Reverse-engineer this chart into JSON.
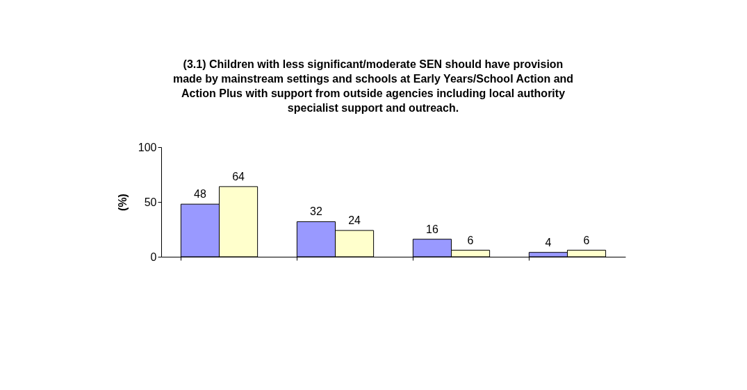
{
  "chart_data": {
    "type": "bar",
    "title": "(3.1) Children with less significant/moderate SEN should have provision made by mainstream settings and schools at Early Years/School Action and Action Plus with support from outside agencies including local authority specialist support and outreach.",
    "ylabel": "(%)",
    "categories": [
      null,
      null,
      null,
      null
    ],
    "series": [
      {
        "color": "#9999ff",
        "values": [
          48,
          32,
          16,
          4
        ]
      },
      {
        "color": "#ffffcc",
        "values": [
          64,
          24,
          6,
          6
        ]
      }
    ],
    "ylim": [
      0,
      100
    ],
    "yticks": [
      0,
      50,
      100
    ],
    "data_labels": true,
    "grid": false,
    "legend": false,
    "tick_labels": "y"
  }
}
